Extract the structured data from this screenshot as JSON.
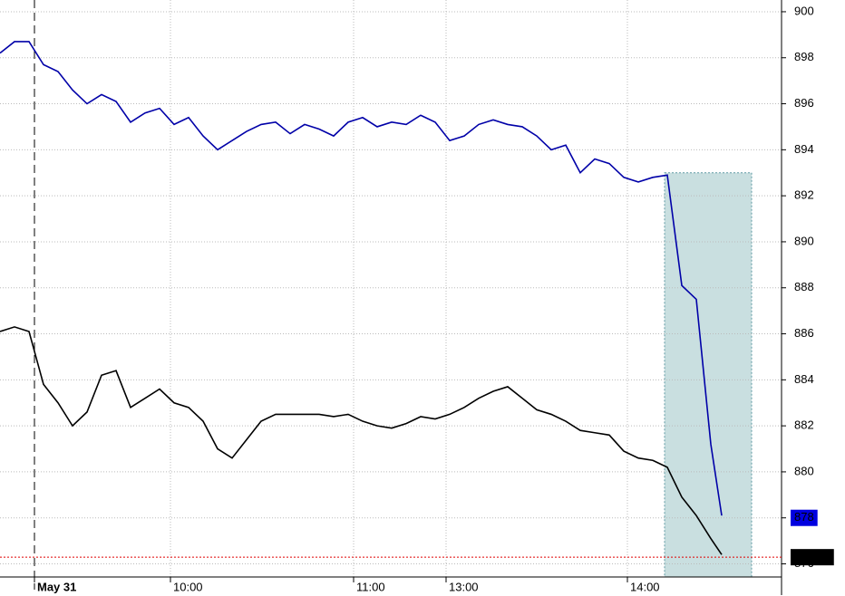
{
  "chart_data": {
    "type": "line",
    "x": [
      0,
      4,
      8,
      12,
      16,
      20,
      24,
      28,
      32,
      36,
      40,
      44,
      48,
      52,
      56,
      60,
      64,
      68,
      72,
      76,
      80,
      84,
      88,
      92,
      96,
      100,
      104,
      108,
      112,
      116,
      120,
      124,
      128,
      132,
      136,
      140,
      144,
      148,
      152,
      156,
      160,
      164,
      168,
      172,
      176,
      180,
      184,
      188,
      192,
      196,
      199
    ],
    "series": [
      {
        "color": "#0000a8",
        "values": [
          898.2,
          898.7,
          898.7,
          897.7,
          897.4,
          896.6,
          896.0,
          896.4,
          896.1,
          895.2,
          895.6,
          895.8,
          895.1,
          895.4,
          894.6,
          894.0,
          894.4,
          894.8,
          895.1,
          895.2,
          894.7,
          895.1,
          894.9,
          894.6,
          895.2,
          895.4,
          895.0,
          895.2,
          895.1,
          895.5,
          895.2,
          894.4,
          894.6,
          895.1,
          895.3,
          895.1,
          895.0,
          894.6,
          894.0,
          894.2,
          893.0,
          893.6,
          893.4,
          892.8,
          892.6,
          892.8,
          892.9,
          888.1,
          887.5,
          881.2,
          878.1
        ]
      },
      {
        "color": "#000000",
        "values": [
          886.1,
          886.3,
          886.1,
          883.8,
          883.0,
          882.0,
          882.6,
          884.2,
          884.4,
          882.8,
          883.2,
          883.6,
          883.0,
          882.8,
          882.2,
          881.0,
          880.6,
          881.4,
          882.2,
          882.5,
          882.5,
          882.5,
          882.5,
          882.4,
          882.5,
          882.2,
          882.0,
          881.9,
          882.1,
          882.4,
          882.3,
          882.5,
          882.8,
          883.2,
          883.5,
          883.7,
          883.2,
          882.7,
          882.5,
          882.2,
          881.8,
          881.7,
          881.6,
          880.9,
          880.6,
          880.5,
          880.2,
          878.9,
          878.1,
          877.1,
          876.4
        ]
      }
    ],
    "xlim": [
      0,
      215.5
    ],
    "xticks": [
      {
        "value": 9.5,
        "label": "May 31"
      },
      {
        "value": 47,
        "label": "10:00"
      },
      {
        "value": 97.5,
        "label": "11:00"
      },
      {
        "value": 123,
        "label": "13:00"
      },
      {
        "value": 173,
        "label": "14:00"
      }
    ],
    "ylim": [
      875.43,
      900.51
    ],
    "yticks": [
      876,
      878,
      880,
      882,
      884,
      886,
      888,
      890,
      892,
      894,
      896,
      898,
      900
    ],
    "grid": true,
    "price_tags": [
      {
        "value": 878,
        "label": "878",
        "color": "#0000e0"
      },
      {
        "value": 876.29,
        "label": "876.29",
        "color": "#000000"
      }
    ],
    "highlight": {
      "x": [
        183.25,
        207.25
      ],
      "top": 893.0
    }
  }
}
